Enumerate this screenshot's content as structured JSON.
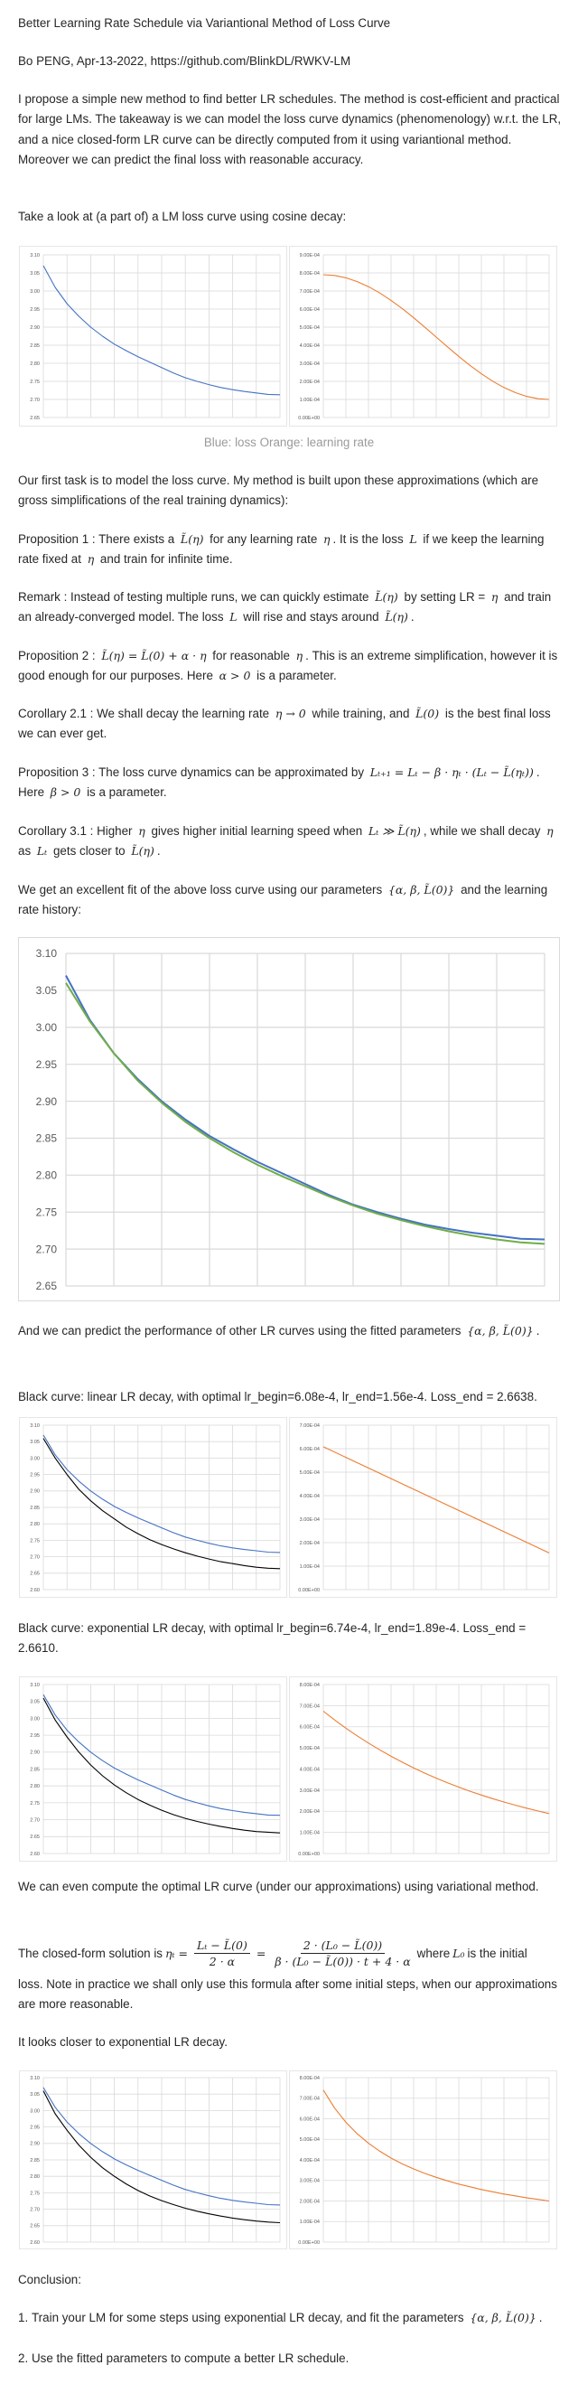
{
  "title": "Better Learning Rate Schedule via Variantional Method of Loss Curve",
  "author": "Bo PENG, Apr-13-2022, https://github.com/BlinkDL/RWKV-LM",
  "intro": [
    {
      "text": "I propose a simple new method to find better LR schedules. The method is cost-efficient and practical for large LMs. The takeaway is we can model the loss curve dynamics (phenomenology) w.r.t. the LR, and a nice closed-form LR curve can be directly computed from it using variantional method. Moreover we can predict the final loss with reasonable accuracy."
    }
  ],
  "take_look": [
    {
      "text": "Take a look at (a part of) a LM loss curve using cosine decay:"
    }
  ],
  "caption": "Blue: loss Orange: learning rate",
  "first_task": [
    {
      "text": "Our first task is to model the loss curve. My method is built upon these approximations (which are gross simplifications of the real training dynamics):"
    }
  ],
  "prop1": [
    {
      "text": "Proposition 1 : There exists a "
    },
    {
      "math": "L̃(η)"
    },
    {
      "text": " for any learning rate "
    },
    {
      "math": "η"
    },
    {
      "text": ". It is the loss "
    },
    {
      "math": "L"
    },
    {
      "text": " if we keep the learning rate fixed at "
    },
    {
      "math": "η"
    },
    {
      "text": " and train for infinite time."
    }
  ],
  "remark": [
    {
      "text": "Remark : Instead of testing multiple runs, we can quickly estimate "
    },
    {
      "math": "L̃(η)"
    },
    {
      "text": " by setting LR = "
    },
    {
      "math": "η"
    },
    {
      "text": " and train an already-converged model. The loss "
    },
    {
      "math": "L"
    },
    {
      "text": " will rise and stays around "
    },
    {
      "math": "L̃(η)"
    },
    {
      "text": "."
    }
  ],
  "prop2": [
    {
      "text": "Proposition 2 : "
    },
    {
      "math": "L̃(η) = L̃(0) + α · η"
    },
    {
      "text": " for reasonable "
    },
    {
      "math": "η"
    },
    {
      "text": ". This is an extreme simplification, however it is good enough for our purposes. Here "
    },
    {
      "math": "α > 0"
    },
    {
      "text": " is a parameter."
    }
  ],
  "cor21": [
    {
      "text": "Corollary 2.1 : We shall decay the learning rate "
    },
    {
      "math": "η → 0"
    },
    {
      "text": " while training, and "
    },
    {
      "math": "L̃(0)"
    },
    {
      "text": " is the best final loss we can ever get."
    }
  ],
  "prop3": [
    {
      "text": "Proposition 3 : The loss curve dynamics can be approximated by "
    },
    {
      "math": "Lₜ₊₁ = Lₜ − β · ηₜ · (Lₜ − L̃(ηₜ))"
    },
    {
      "text": ". Here "
    },
    {
      "math": "β > 0"
    },
    {
      "text": " is a parameter."
    }
  ],
  "cor31": [
    {
      "text": "Corollary 3.1 : Higher "
    },
    {
      "math": "η"
    },
    {
      "text": " gives higher initial learning speed when "
    },
    {
      "math": "Lₜ ≫ L̃(η)"
    },
    {
      "text": ", while we shall decay "
    },
    {
      "math": "η"
    },
    {
      "text": " as "
    },
    {
      "math": "Lₜ"
    },
    {
      "text": " gets closer to "
    },
    {
      "math": "L̃(η)"
    },
    {
      "text": "."
    }
  ],
  "fit": [
    {
      "text": "We get an excellent fit of the above loss curve using our parameters "
    },
    {
      "math": "{α, β, L̃(0)}"
    },
    {
      "text": " and the learning rate history:"
    }
  ],
  "predict": [
    {
      "text": "And we can predict the performance of other LR curves using the fitted parameters "
    },
    {
      "math": "{α, β, L̃(0)}"
    },
    {
      "text": "."
    }
  ],
  "black_linear": [
    {
      "text": "Black curve: linear LR decay, with optimal lr_begin=6.08e-4, lr_end=1.56e-4. Loss_end = 2.6638."
    }
  ],
  "black_exp": [
    {
      "text": "Black curve: exponential LR decay, with optimal lr_begin=6.74e-4, lr_end=1.89e-4. Loss_end = 2.6610."
    }
  ],
  "optimal": [
    {
      "text": "We can even compute the optimal LR curve (under our approximations) using variational method."
    }
  ],
  "formula": [
    {
      "text": "The closed-form solution is "
    },
    {
      "math": "ηₜ ="
    },
    {
      "frac": {
        "num": "Lₜ − L̃(0)",
        "den": "2 · α"
      }
    },
    {
      "math": "="
    },
    {
      "frac": {
        "num": "2 · (L₀ − L̃(0))",
        "den": "β · (L₀ − L̃(0)) · t + 4 · α"
      }
    },
    {
      "text": " where "
    },
    {
      "math": "L₀"
    },
    {
      "text": " is the initial"
    }
  ],
  "formula_cont": [
    {
      "text": "loss. Note in practice we shall only use this formula after some initial steps, when our approximations are more reasonable."
    }
  ],
  "closer": [
    {
      "text": "It looks closer to exponential LR decay."
    }
  ],
  "conclusion": [
    {
      "text": "Conclusion:"
    }
  ],
  "list": [
    {
      "num": "1.",
      "body": [
        {
          "text": "Train your LM for some steps using exponential LR decay, and fit the parameters "
        },
        {
          "math": "{α, β, L̃(0)}"
        },
        {
          "text": "."
        }
      ]
    },
    {
      "num": "2.",
      "body": [
        {
          "text": "Use the fitted parameters to compute a better LR schedule."
        }
      ]
    }
  ],
  "colors": {
    "loss": "#4472c4",
    "lr": "#ed7d31",
    "fit": "#70ad47",
    "prediction": "#000000",
    "grid": "#d9d9d9"
  },
  "chart_data": [
    {
      "type": "line",
      "ylim": [
        2.65,
        3.1
      ],
      "y_ticks": [
        "3.10",
        "3.05",
        "3.00",
        "2.95",
        "2.90",
        "2.85",
        "2.80",
        "2.75",
        "2.70",
        "2.65"
      ],
      "grid": true,
      "series": [
        {
          "color": "#4472c4",
          "values": [
            3.07,
            3.01,
            2.965,
            2.93,
            2.9,
            2.875,
            2.853,
            2.835,
            2.818,
            2.803,
            2.788,
            2.773,
            2.76,
            2.75,
            2.741,
            2.733,
            2.727,
            2.722,
            2.718,
            2.714,
            2.713
          ]
        }
      ]
    },
    {
      "type": "line",
      "ylim": [
        0,
        0.0009
      ],
      "y_ticks": [
        "9.00E-04",
        "8.00E-04",
        "7.00E-04",
        "6.00E-04",
        "5.00E-04",
        "4.00E-04",
        "3.00E-04",
        "2.00E-04",
        "1.00E-04",
        "0.00E+00"
      ],
      "grid": true,
      "series": [
        {
          "color": "#ed7d31",
          "values": [
            0.00079,
            0.000786,
            0.000773,
            0.000752,
            0.000724,
            0.000689,
            0.000648,
            0.000602,
            0.000552,
            0.000499,
            0.000445,
            0.000391,
            0.000338,
            0.000288,
            0.000242,
            0.000201,
            0.000166,
            0.000138,
            0.000117,
            0.000104,
            0.0001
          ]
        }
      ]
    },
    {
      "type": "line",
      "ylim": [
        2.65,
        3.1
      ],
      "y_ticks": [
        "3.10",
        "3.05",
        "3.00",
        "2.95",
        "2.90",
        "2.85",
        "2.80",
        "2.75",
        "2.70",
        "2.65"
      ],
      "grid": true,
      "series": [
        {
          "color": "#4472c4",
          "values": [
            3.07,
            3.01,
            2.965,
            2.93,
            2.9,
            2.875,
            2.853,
            2.835,
            2.818,
            2.803,
            2.788,
            2.773,
            2.76,
            2.75,
            2.741,
            2.733,
            2.727,
            2.722,
            2.718,
            2.714,
            2.713
          ]
        },
        {
          "color": "#70ad47",
          "values": [
            3.06,
            3.008,
            2.965,
            2.928,
            2.898,
            2.872,
            2.85,
            2.831,
            2.814,
            2.799,
            2.785,
            2.771,
            2.759,
            2.748,
            2.739,
            2.731,
            2.724,
            2.718,
            2.713,
            2.709,
            2.707
          ]
        }
      ]
    },
    {
      "type": "line",
      "ylim": [
        2.6,
        3.1
      ],
      "y_ticks": [
        "3.10",
        "3.05",
        "3.00",
        "2.95",
        "2.90",
        "2.85",
        "2.80",
        "2.75",
        "2.70",
        "2.65",
        "2.60"
      ],
      "grid": true,
      "series": [
        {
          "color": "#4472c4",
          "values": [
            3.07,
            3.01,
            2.965,
            2.93,
            2.9,
            2.875,
            2.853,
            2.835,
            2.818,
            2.803,
            2.788,
            2.773,
            2.76,
            2.75,
            2.741,
            2.733,
            2.727,
            2.722,
            2.718,
            2.714,
            2.713
          ]
        },
        {
          "color": "#000000",
          "values": [
            3.06,
            3.0,
            2.95,
            2.905,
            2.87,
            2.84,
            2.815,
            2.79,
            2.77,
            2.752,
            2.737,
            2.724,
            2.712,
            2.702,
            2.693,
            2.685,
            2.679,
            2.673,
            2.668,
            2.665,
            2.6638
          ]
        }
      ]
    },
    {
      "type": "line",
      "ylim": [
        0,
        0.0007
      ],
      "y_ticks": [
        "7.00E-04",
        "6.00E-04",
        "5.00E-04",
        "4.00E-04",
        "3.00E-04",
        "2.00E-04",
        "1.00E-04",
        "0.00E+00"
      ],
      "grid": true,
      "series": [
        {
          "color": "#ed7d31",
          "values": [
            0.000608,
            0.000156
          ]
        }
      ]
    },
    {
      "type": "line",
      "ylim": [
        2.6,
        3.1
      ],
      "y_ticks": [
        "3.10",
        "3.05",
        "3.00",
        "2.95",
        "2.90",
        "2.85",
        "2.80",
        "2.75",
        "2.70",
        "2.65",
        "2.60"
      ],
      "grid": true,
      "series": [
        {
          "color": "#4472c4",
          "values": [
            3.07,
            3.01,
            2.965,
            2.93,
            2.9,
            2.875,
            2.853,
            2.835,
            2.818,
            2.803,
            2.788,
            2.773,
            2.76,
            2.75,
            2.741,
            2.733,
            2.727,
            2.722,
            2.718,
            2.714,
            2.713
          ]
        },
        {
          "color": "#000000",
          "values": [
            3.06,
            2.995,
            2.945,
            2.9,
            2.862,
            2.83,
            2.803,
            2.78,
            2.76,
            2.743,
            2.728,
            2.715,
            2.704,
            2.695,
            2.687,
            2.68,
            2.674,
            2.669,
            2.665,
            2.663,
            2.661
          ]
        }
      ]
    },
    {
      "type": "line",
      "ylim": [
        0,
        0.0008
      ],
      "y_ticks": [
        "8.00E-04",
        "7.00E-04",
        "6.00E-04",
        "5.00E-04",
        "4.00E-04",
        "3.00E-04",
        "2.00E-04",
        "1.00E-04",
        "0.00E+00"
      ],
      "grid": true,
      "series": [
        {
          "color": "#ed7d31",
          "values": [
            0.000674,
            0.0006325,
            0.0005935,
            0.000557,
            0.0005227,
            0.0004905,
            0.0004603,
            0.0004319,
            0.0004053,
            0.0003803,
            0.0003569,
            0.0003349,
            0.0003143,
            0.0002949,
            0.0002768,
            0.0002597,
            0.0002437,
            0.0002287,
            0.0002146,
            0.0002014,
            0.000189
          ]
        }
      ]
    },
    {
      "type": "line",
      "ylim": [
        2.6,
        3.1
      ],
      "y_ticks": [
        "3.10",
        "3.05",
        "3.00",
        "2.95",
        "2.90",
        "2.85",
        "2.80",
        "2.75",
        "2.70",
        "2.65",
        "2.60"
      ],
      "grid": true,
      "series": [
        {
          "color": "#4472c4",
          "values": [
            3.07,
            3.01,
            2.965,
            2.93,
            2.9,
            2.875,
            2.853,
            2.835,
            2.818,
            2.803,
            2.788,
            2.773,
            2.76,
            2.75,
            2.741,
            2.733,
            2.727,
            2.722,
            2.718,
            2.714,
            2.713
          ]
        },
        {
          "color": "#000000",
          "values": [
            3.06,
            2.99,
            2.94,
            2.895,
            2.858,
            2.826,
            2.8,
            2.777,
            2.757,
            2.74,
            2.726,
            2.714,
            2.703,
            2.694,
            2.686,
            2.679,
            2.673,
            2.668,
            2.664,
            2.661,
            2.659
          ]
        }
      ]
    },
    {
      "type": "line",
      "ylim": [
        0,
        0.0008
      ],
      "y_ticks": [
        "8.00E-04",
        "7.00E-04",
        "6.00E-04",
        "5.00E-04",
        "4.00E-04",
        "3.00E-04",
        "2.00E-04",
        "1.00E-04",
        "0.00E+00"
      ],
      "grid": true,
      "series": [
        {
          "color": "#ed7d31",
          "values": [
            0.00074,
            0.000652,
            0.000583,
            0.000527,
            0.000481,
            0.000442,
            0.000409,
            0.00038,
            0.000356,
            0.000334,
            0.000315,
            0.000298,
            0.000282,
            0.000269,
            0.000256,
            0.000245,
            0.000234,
            0.000225,
            0.000216,
            0.000208,
            0.0002
          ]
        }
      ]
    }
  ]
}
